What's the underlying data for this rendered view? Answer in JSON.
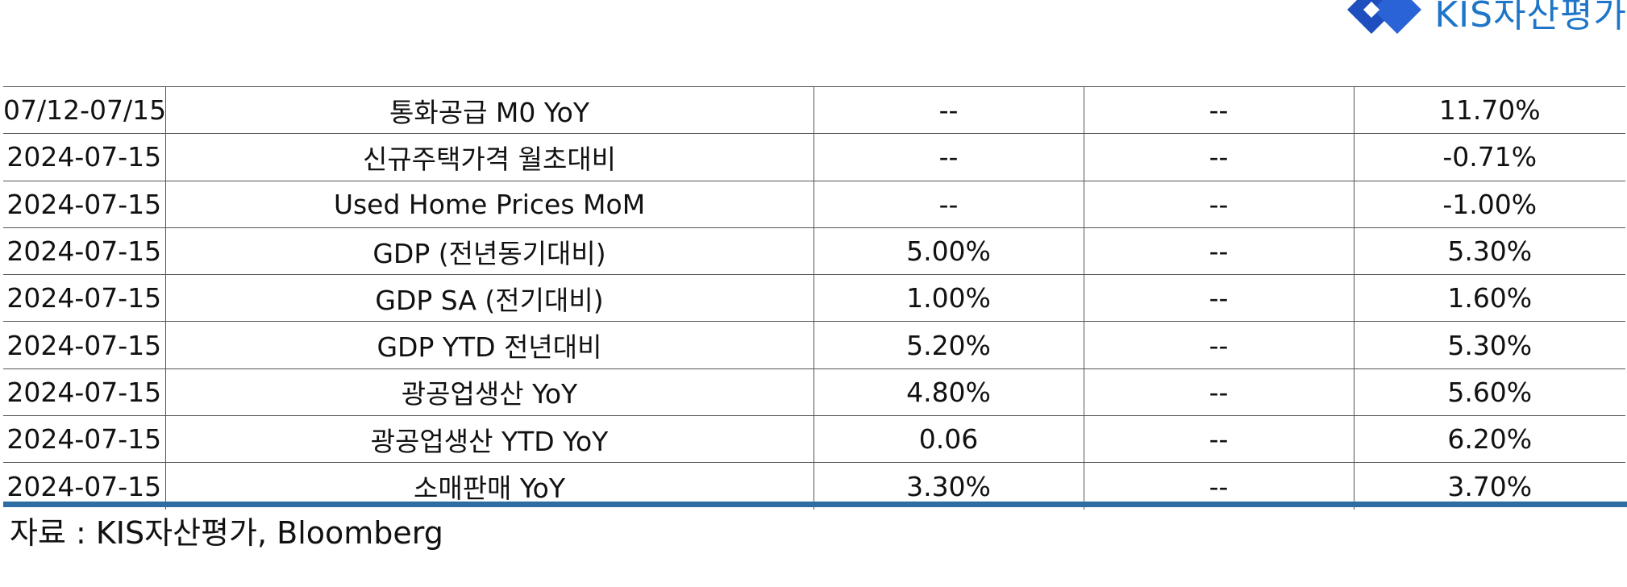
{
  "logo": {
    "text": "KIS자산평가",
    "color": "#1f76c8"
  },
  "table": {
    "rows": [
      [
        "07/12-07/15",
        "통화공급 M0 YoY",
        "--",
        "--",
        "11.70%"
      ],
      [
        "2024-07-15",
        "신규주택가격 월초대비",
        "--",
        "--",
        "-0.71%"
      ],
      [
        "2024-07-15",
        "Used Home Prices MoM",
        "--",
        "--",
        "-1.00%"
      ],
      [
        "2024-07-15",
        "GDP (전년동기대비)",
        "5.00%",
        "--",
        "5.30%"
      ],
      [
        "2024-07-15",
        "GDP SA (전기대비)",
        "1.00%",
        "--",
        "1.60%"
      ],
      [
        "2024-07-15",
        "GDP YTD 전년대비",
        "5.20%",
        "--",
        "5.30%"
      ],
      [
        "2024-07-15",
        "광공업생산 YoY",
        "4.80%",
        "--",
        "5.60%"
      ],
      [
        "2024-07-15",
        "광공업생산 YTD YoY",
        "0.06",
        "--",
        "6.20%"
      ],
      [
        "2024-07-15",
        "소매판매 YoY",
        "3.30%",
        "--",
        "3.70%"
      ]
    ]
  },
  "footer": {
    "source": "자료 : KIS자산평가, Bloomberg",
    "rule_color": "#2e6da4"
  }
}
